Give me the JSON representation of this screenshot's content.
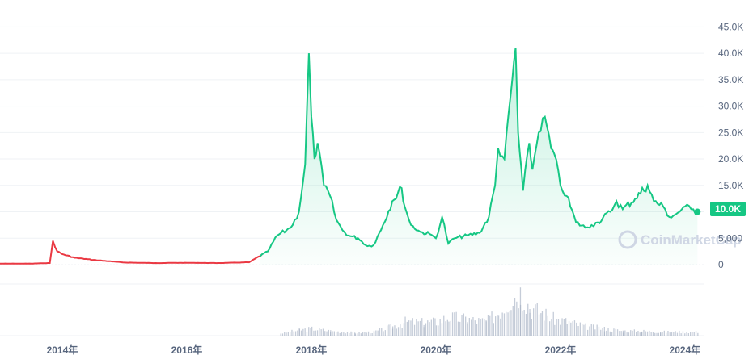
{
  "watermark": {
    "text": "CoinMarketCap",
    "icon": "coinmarketcap-logo-icon"
  },
  "price_badge": {
    "text": "10.0K",
    "color": "#16c784"
  },
  "colors": {
    "up": "#16c784",
    "down": "#ea3943",
    "volume": "#a6b0c3"
  },
  "chart_data": {
    "type": "line",
    "title": "",
    "xlabel": "",
    "ylabel": "",
    "ylim": [
      0,
      47500
    ],
    "y_tick_values": [
      0,
      5000,
      10000,
      15000,
      20000,
      25000,
      30000,
      35000,
      40000,
      45000
    ],
    "y_tick_labels": [
      "0",
      "5,000",
      "10.0K",
      "15.0K",
      "20.0K",
      "25.0K",
      "30.0K",
      "35.0K",
      "40.0K",
      "45.0K"
    ],
    "x_tick_values": [
      2014,
      2016,
      2018,
      2020,
      2022,
      2024
    ],
    "x_tick_labels": [
      "2014年",
      "2016年",
      "2018年",
      "2020年",
      "2022年",
      "2024年"
    ],
    "xlim": [
      2013.0,
      2024.3
    ],
    "grid": true,
    "series": [
      {
        "type": "line",
        "x": [
          2013.0,
          2013.5,
          2013.8,
          2013.85,
          2013.92,
          2014.0,
          2014.2,
          2014.5,
          2014.8,
          2015.0,
          2015.5,
          2016.0,
          2016.5,
          2017.0,
          2017.3,
          2017.45,
          2017.6,
          2017.7,
          2017.8,
          2017.9,
          2017.96,
          2018.0,
          2018.05,
          2018.1,
          2018.2,
          2018.3,
          2018.4,
          2018.5,
          2018.6,
          2018.75,
          2018.9,
          2019.0,
          2019.15,
          2019.3,
          2019.45,
          2019.5,
          2019.6,
          2019.75,
          2019.9,
          2020.0,
          2020.1,
          2020.2,
          2020.3,
          2020.5,
          2020.7,
          2020.85,
          2020.95,
          2021.0,
          2021.1,
          2021.2,
          2021.28,
          2021.32,
          2021.4,
          2021.5,
          2021.55,
          2021.65,
          2021.75,
          2021.85,
          2021.9,
          2022.0,
          2022.1,
          2022.25,
          2022.4,
          2022.5,
          2022.6,
          2022.8,
          2022.9,
          2023.0,
          2023.2,
          2023.4,
          2023.5,
          2023.65,
          2023.75,
          2023.85,
          2023.95,
          2024.0,
          2024.1,
          2024.2
        ],
        "y": [
          200,
          200,
          300,
          4500,
          2500,
          2000,
          1300,
          900,
          600,
          400,
          300,
          350,
          300,
          450,
          2500,
          5500,
          6500,
          7500,
          10000,
          19000,
          40000,
          28000,
          20000,
          23000,
          15000,
          13000,
          8500,
          6500,
          5500,
          5000,
          3500,
          3700,
          7500,
          12000,
          14500,
          11000,
          7500,
          6200,
          5800,
          5000,
          9000,
          4000,
          5000,
          5500,
          6000,
          9000,
          15000,
          22000,
          20000,
          32000,
          41000,
          25000,
          14000,
          23000,
          18000,
          25000,
          28000,
          22000,
          21000,
          15000,
          13000,
          8000,
          7000,
          7500,
          8000,
          10000,
          12000,
          10500,
          12500,
          15000,
          12000,
          11000,
          9000,
          9500,
          10500,
          11000,
          10500,
          10000
        ]
      },
      {
        "type": "volume",
        "x": [
          2017.5,
          2017.8,
          2018.0,
          2018.3,
          2018.7,
          2019.0,
          2019.3,
          2019.5,
          2019.8,
          2020.0,
          2020.2,
          2020.5,
          2020.8,
          2021.0,
          2021.2,
          2021.35,
          2021.5,
          2021.7,
          2021.9,
          2022.1,
          2022.4,
          2022.7,
          2023.0,
          2023.3,
          2023.6,
          2023.9,
          2024.2
        ],
        "y": [
          0.05,
          0.12,
          0.15,
          0.1,
          0.06,
          0.08,
          0.2,
          0.3,
          0.28,
          0.3,
          0.4,
          0.35,
          0.3,
          0.5,
          0.8,
          0.95,
          0.6,
          0.5,
          0.35,
          0.3,
          0.2,
          0.15,
          0.1,
          0.1,
          0.08,
          0.08,
          0.08
        ]
      }
    ]
  }
}
